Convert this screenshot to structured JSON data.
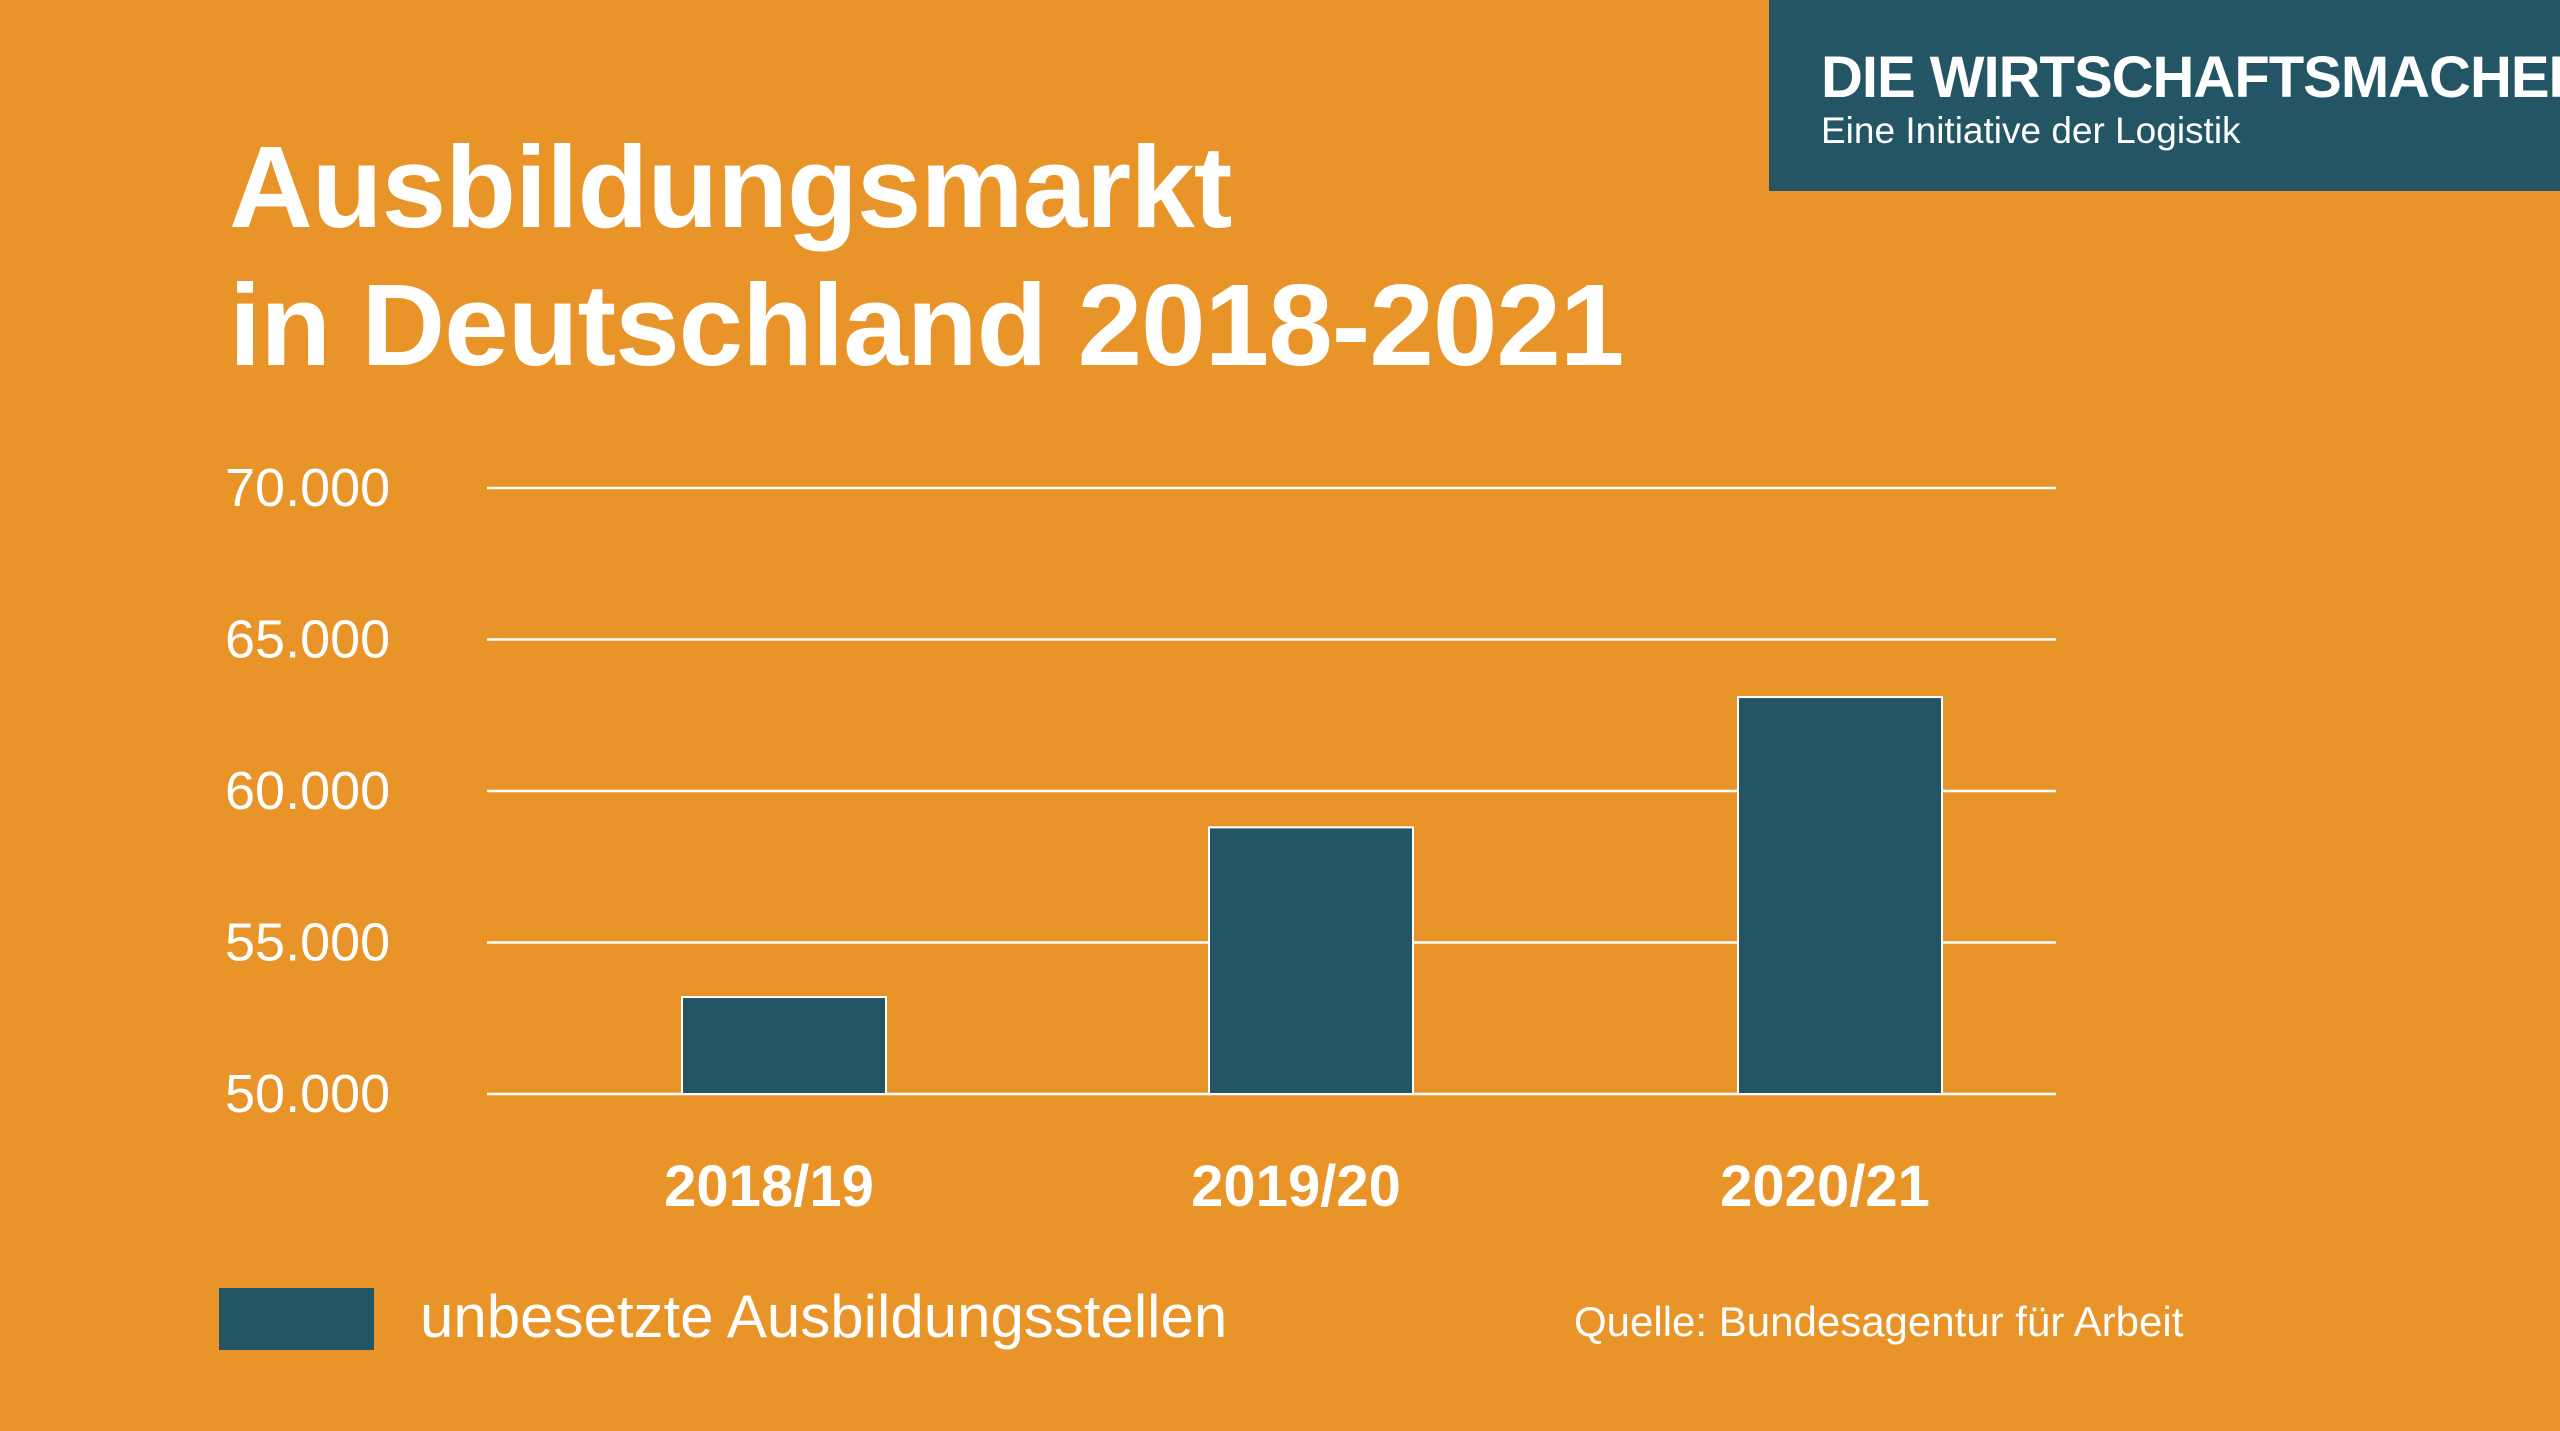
{
  "logo": {
    "title": "DIE WIRTSCHAFTSMACHER",
    "subtitle": "Eine Initiative der Logistik"
  },
  "colors": {
    "background": "#E99428",
    "bar": "#245565",
    "grid": "#FFFFFF"
  },
  "chart_data": {
    "type": "bar",
    "title": [
      "Ausbildungsmarkt",
      "in Deutschland 2018-2021"
    ],
    "categories": [
      "2018/19",
      "2019/20",
      "2020/21"
    ],
    "series": [
      {
        "name": "unbesetzte Ausbildungsstellen",
        "values": [
          53200,
          58800,
          63100
        ]
      }
    ],
    "ylim": [
      50000,
      70000
    ],
    "yticks": [
      50000,
      55000,
      60000,
      65000,
      70000
    ],
    "ytick_labels": [
      "50.000",
      "55.000",
      "60.000",
      "65.000",
      "70.000"
    ],
    "grid": true,
    "legend": "bottom-left",
    "source": "Quelle: Bundesagentur für Arbeit"
  }
}
